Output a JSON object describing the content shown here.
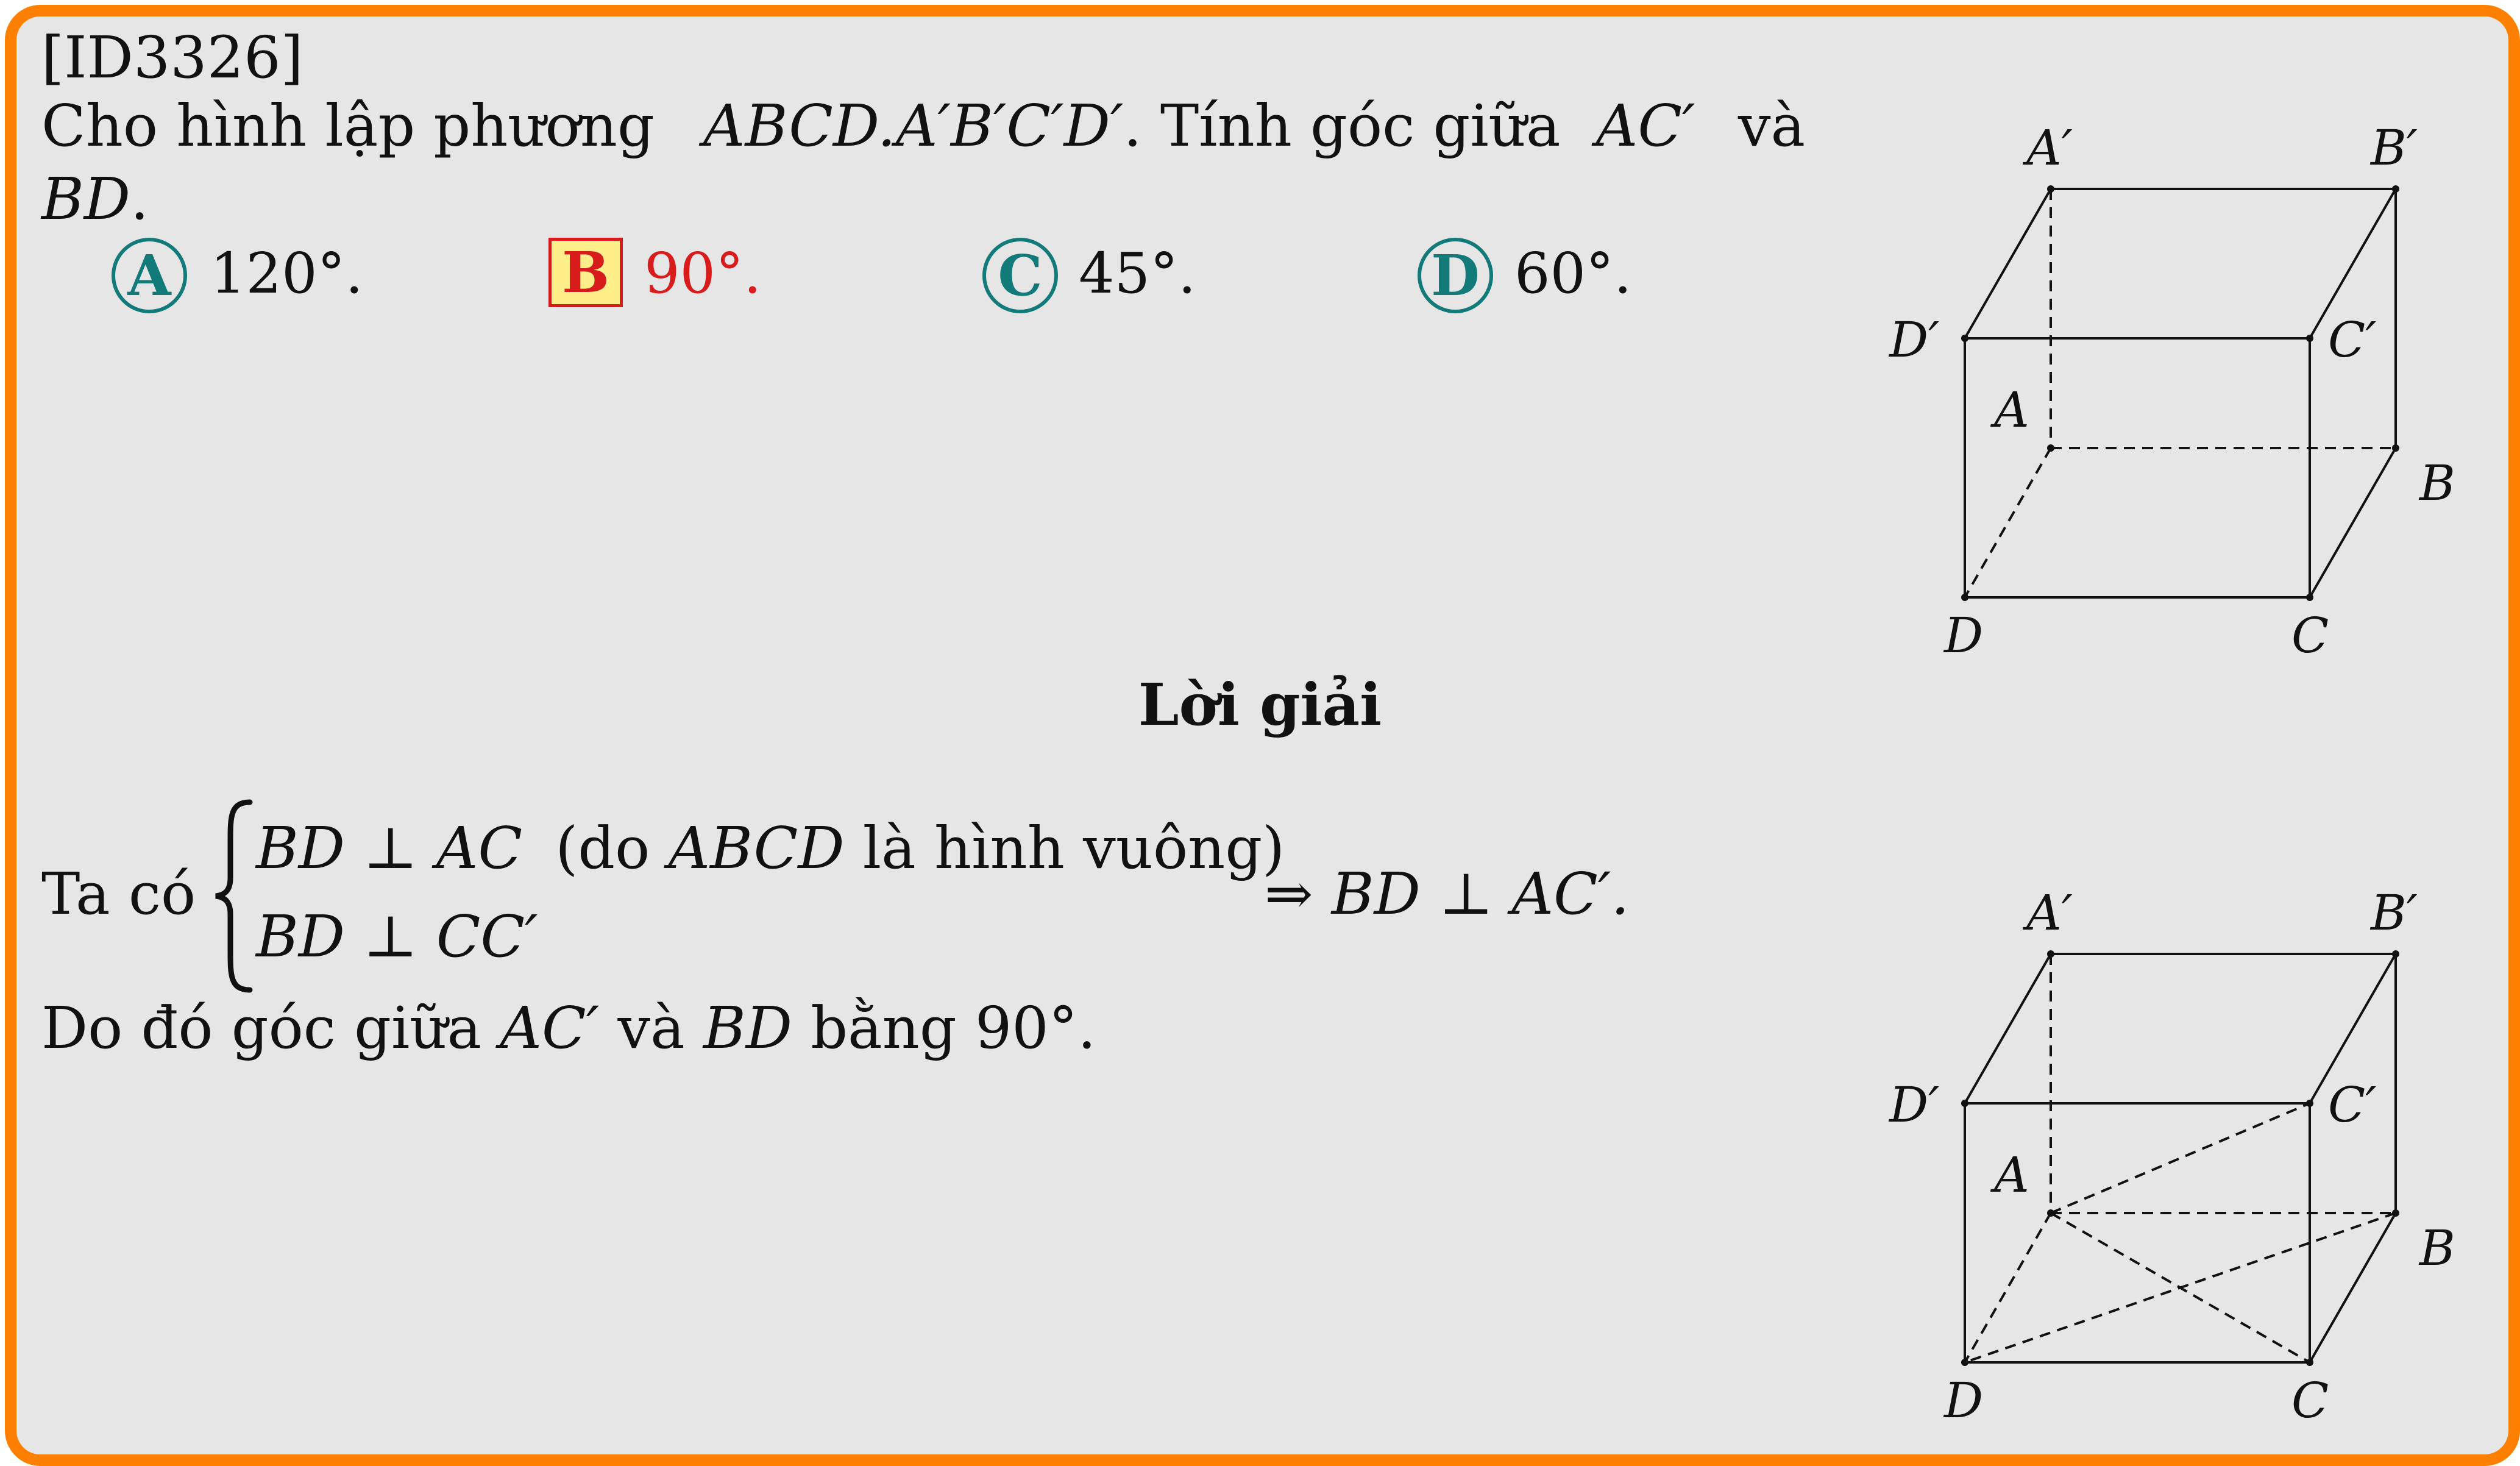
{
  "problem": {
    "id": "[ID3326]",
    "stem_text": "Cho hình lập phương",
    "stem_math": "ABCD.A′B′C′D′",
    "stem_text2": ". Tính góc giữa",
    "stem_math2": "AC′",
    "stem_text3": "và",
    "stem_math3": "BD",
    "stem_end": "."
  },
  "options": [
    {
      "letter": "A",
      "text": "120°.",
      "correct": false
    },
    {
      "letter": "B",
      "text": "90°.",
      "correct": true
    },
    {
      "letter": "C",
      "text": "45°.",
      "correct": false
    },
    {
      "letter": "D",
      "text": "60°.",
      "correct": false
    }
  ],
  "solution": {
    "heading": "Lời giải",
    "prefix": "Ta có",
    "line1_math1": "BD ⊥ AC",
    "line1_text": "(do",
    "line1_math2": "ABCD",
    "line1_text2": "là hình vuông)",
    "line2_math": "BD ⊥ CC′",
    "conclusion": "⇒ BD ⊥ AC′.",
    "final_text1": "Do đó góc giữa",
    "final_math1": "AC′",
    "final_text2": "và",
    "final_math2": "BD",
    "final_text3": "bằng 90°."
  },
  "figure_labels": {
    "A_prime": "A′",
    "B_prime": "B′",
    "C_prime": "C′",
    "D_prime": "D′",
    "A": "A",
    "B": "B",
    "C": "C",
    "D": "D"
  },
  "colors": {
    "border": "#ff8000",
    "background": "#e6e6e6",
    "option_circle": "#137a7a",
    "correct": "#d81b1b",
    "correct_fill": "#ffef8a"
  }
}
